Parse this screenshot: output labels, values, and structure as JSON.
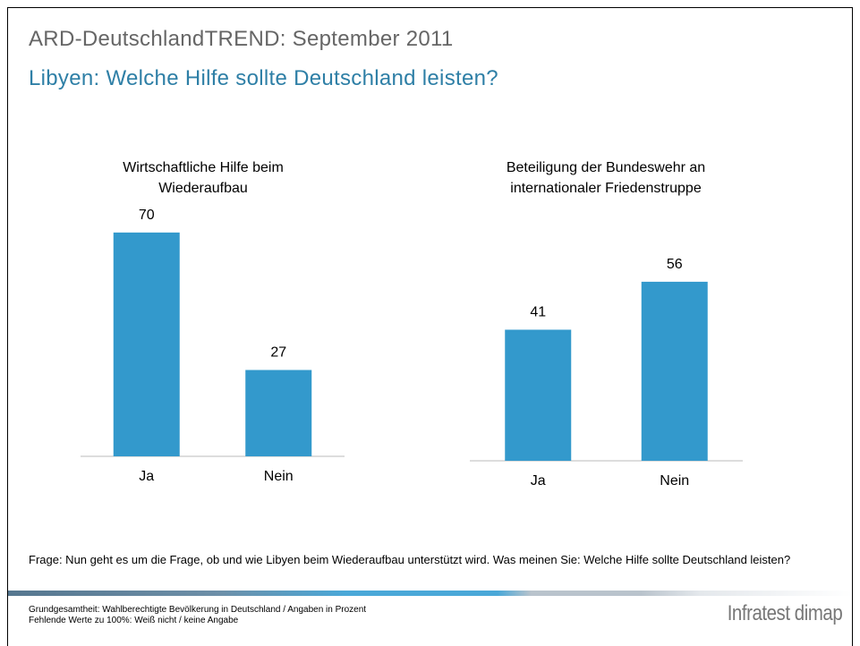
{
  "header": {
    "title": "ARD-DeutschlandTREND: September 2011",
    "subtitle": "Libyen: Welche Hilfe sollte Deutschland leisten?"
  },
  "chart_data": [
    {
      "type": "bar",
      "title": [
        "Wirtschaftliche Hilfe beim",
        "Wiederaufbau"
      ],
      "categories": [
        "Ja",
        "Nein"
      ],
      "values": [
        70,
        27
      ],
      "color": "#3399cc",
      "ylim": [
        0,
        75
      ]
    },
    {
      "type": "bar",
      "title": [
        "Beteiligung der Bundeswehr an",
        "internationaler Friedenstruppe"
      ],
      "categories": [
        "Ja",
        "Nein"
      ],
      "values": [
        41,
        56
      ],
      "color": "#3399cc",
      "ylim": [
        0,
        75
      ]
    }
  ],
  "question": "Frage: Nun geht es um die Frage, ob und wie Libyen beim Wiederaufbau unterstützt wird. Was meinen Sie: Welche Hilfe sollte Deutschland leisten?",
  "footnote": [
    "Grundgesamtheit: Wahlberechtigte Bevölkerung in Deutschland / Angaben in Prozent",
    "Fehlende Werte zu 100%: Weiß nicht / keine Angabe"
  ],
  "logo": "Infratest dimap"
}
